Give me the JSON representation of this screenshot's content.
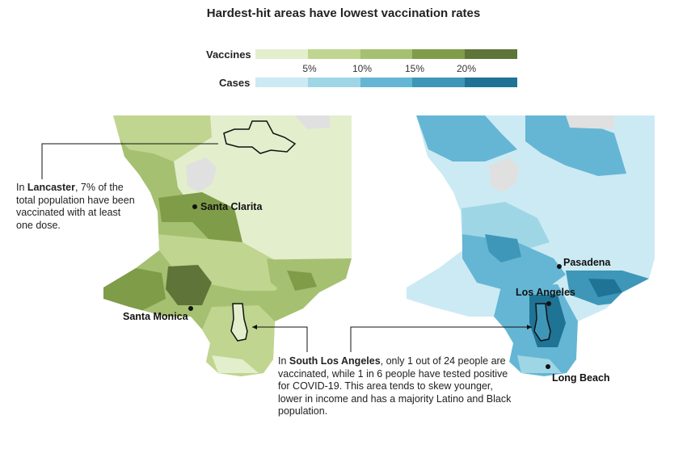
{
  "title": "Hardest-hit areas have lowest vaccination rates",
  "legend": {
    "vaccines_label": "Vaccines",
    "cases_label": "Cases",
    "ticks": [
      "5%",
      "10%",
      "15%",
      "20%"
    ],
    "vaccine_colors": [
      "#e3eecd",
      "#c0d58f",
      "#a5c070",
      "#7f9c48",
      "#5f7438"
    ],
    "case_colors": [
      "#cceaf3",
      "#9fd6e6",
      "#64b6d4",
      "#3e97b8",
      "#1f7395"
    ]
  },
  "cities": {
    "santa_clarita": "Santa Clarita",
    "santa_monica": "Santa Monica",
    "pasadena": "Pasadena",
    "los_angeles": "Los Angeles",
    "long_beach": "Long Beach"
  },
  "annotations": {
    "lancaster": {
      "bold": "Lancaster",
      "rest": ", 7% of the total population have been vaccinated with at least one dose.",
      "prefix": "In "
    },
    "south_la": {
      "prefix": "In ",
      "bold": "South Los Angeles",
      "rest": ", only 1 out of 24 people are vaccinated, while 1 in 6 people have tested positive for COVID-19. This area tends to skew younger, lower in income and has a majority Latino and Black population."
    }
  },
  "colors": {
    "no_data": "#e0e0e0",
    "outline": "#111111"
  }
}
